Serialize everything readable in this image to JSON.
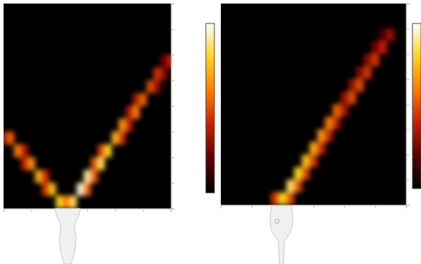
{
  "chart_data": [
    {
      "type": "heatmap",
      "xlim": [
        -3,
        3
      ],
      "xticks": [
        -3,
        -2,
        -1,
        0,
        1,
        2,
        3
      ],
      "ylim": [
        0,
        8
      ],
      "yticks": [
        0,
        1,
        2,
        3,
        4,
        5,
        6,
        7,
        8
      ],
      "tick_labels": false,
      "colorbar_range": [
        0,
        1
      ],
      "cell_size": [
        0.25,
        0.5
      ],
      "cells": [
        [
          -0.5,
          0.25,
          0.85
        ],
        [
          -0.75,
          0.25,
          0.6
        ],
        [
          -0.25,
          0.75,
          0.95
        ],
        [
          0,
          0.75,
          0.57
        ],
        [
          0,
          1.25,
          0.9
        ],
        [
          0.25,
          1.25,
          0.54
        ],
        [
          0.5,
          1.75,
          0.85
        ],
        [
          0.25,
          1.75,
          0.51
        ],
        [
          0.75,
          2.25,
          0.8
        ],
        [
          0.5,
          2.25,
          0.48
        ],
        [
          1,
          2.75,
          0.72
        ],
        [
          1.25,
          2.75,
          0.43
        ],
        [
          1.25,
          3.25,
          0.65
        ],
        [
          1.5,
          3.25,
          0.39
        ],
        [
          1.75,
          3.75,
          0.6
        ],
        [
          1.5,
          3.75,
          0.36
        ],
        [
          2,
          4.25,
          0.55
        ],
        [
          1.75,
          4.25,
          0.33
        ],
        [
          2.25,
          4.75,
          0.5
        ],
        [
          2.5,
          4.75,
          0.3
        ],
        [
          2.5,
          5.25,
          0.45
        ],
        [
          2.75,
          5.25,
          0.27
        ],
        [
          3,
          5.75,
          0.4
        ],
        [
          2.75,
          5.75,
          0.24
        ],
        [
          -1,
          0.25,
          0.8
        ],
        [
          -1.25,
          0.75,
          0.75
        ],
        [
          -1.5,
          0.75,
          0.45
        ],
        [
          -1.75,
          1.25,
          0.7
        ],
        [
          -1.5,
          1.25,
          0.42
        ],
        [
          -2,
          1.75,
          0.65
        ],
        [
          -2.25,
          1.75,
          0.39
        ],
        [
          -2.5,
          2.25,
          0.6
        ],
        [
          -2.25,
          2.25,
          0.36
        ],
        [
          -2.75,
          2.75,
          0.55
        ],
        [
          -3,
          2.75,
          0.33
        ]
      ]
    },
    {
      "type": "heatmap",
      "xlim": [
        -3,
        3
      ],
      "xticks": [
        -3,
        -2,
        -1,
        0,
        1,
        2,
        3
      ],
      "ylim": [
        0,
        8
      ],
      "yticks": [
        0,
        1,
        2,
        3,
        4,
        5,
        6,
        7,
        8
      ],
      "tick_labels": false,
      "colorbar_range": [
        0,
        1
      ],
      "cell_size": [
        0.25,
        0.5
      ],
      "cells": [
        [
          -1,
          0.25,
          0.8
        ],
        [
          -0.75,
          0.25,
          0.48
        ],
        [
          -1.25,
          0.25,
          0.45
        ],
        [
          -0.75,
          0.75,
          0.85
        ],
        [
          -0.5,
          0.75,
          0.51
        ],
        [
          -0.5,
          1.25,
          0.8
        ],
        [
          -0.25,
          1.25,
          0.48
        ],
        [
          -0.25,
          1.75,
          0.75
        ],
        [
          0,
          1.75,
          0.45
        ],
        [
          0,
          2.25,
          0.7
        ],
        [
          0.25,
          2.25,
          0.42
        ],
        [
          0.25,
          2.75,
          0.65
        ],
        [
          0.5,
          2.75,
          0.39
        ],
        [
          0.5,
          3.25,
          0.6
        ],
        [
          0.75,
          3.25,
          0.36
        ],
        [
          0.75,
          3.75,
          0.55
        ],
        [
          1,
          3.75,
          0.33
        ],
        [
          1.25,
          4.25,
          0.5
        ],
        [
          1,
          4.25,
          0.3
        ],
        [
          1.5,
          4.75,
          0.5
        ],
        [
          1.25,
          4.75,
          0.3
        ],
        [
          1.75,
          5.25,
          0.45
        ],
        [
          1.5,
          5.25,
          0.27
        ],
        [
          2,
          5.75,
          0.45
        ],
        [
          1.75,
          5.75,
          0.27
        ],
        [
          2.25,
          6.25,
          0.4
        ],
        [
          2,
          6.25,
          0.24
        ],
        [
          2.5,
          6.75,
          0.3
        ],
        [
          2.25,
          6.75,
          0.18
        ]
      ]
    }
  ]
}
